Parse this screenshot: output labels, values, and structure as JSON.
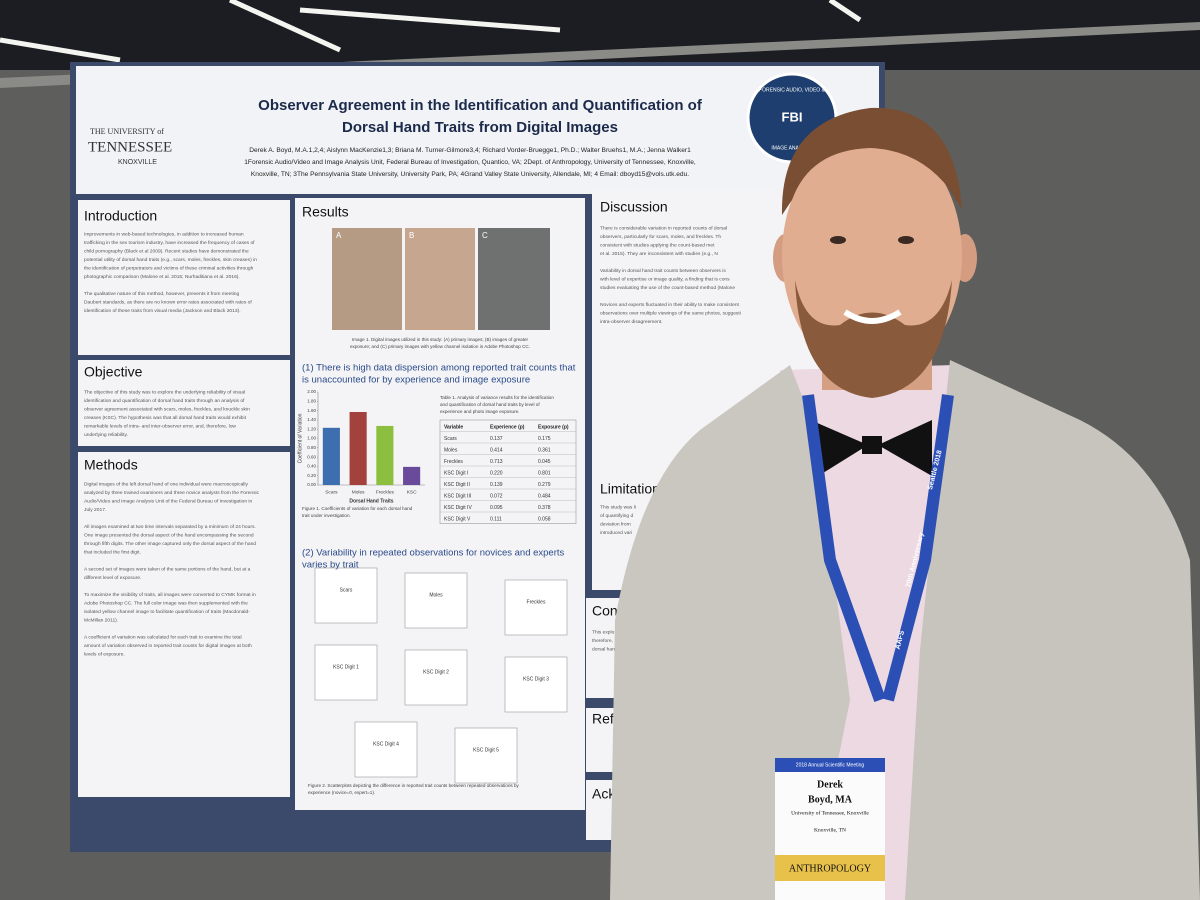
{
  "poster": {
    "title": [
      "Observer Agreement in the Identification and Quantification of",
      "Dorsal Hand Traits from Digital Images"
    ],
    "authors": [
      "Derek A. Boyd, M.A.1,2,4; Aislynn MacKenzie1,3; Briana M. Turner-Gilmore3,4; Richard Vorder-Bruegge1, Ph.D.; Walter Bruehs1, M.A.; Jenna Walker1",
      "1Forensic Audio/Video and Image Analysis Unit, Federal Bureau of Investigation, Quantico, VA; 2Dept. of Anthropology, University of Tennessee, Knoxville,",
      "Knoxville, TN; 3The Pennsylvania State University, University Park, PA; 4Grand Valley State University, Allendale, MI; 4 Email: dboyd15@vols.utk.edu."
    ],
    "logo_left": [
      "THE UNIVERSITY of",
      "TENNESSEE",
      "KNOXVILLE"
    ],
    "logo_right": [
      "FBI",
      "FORENSIC AUDIO, VIDEO &",
      "IMAGE ANALYSIS"
    ],
    "introduction": {
      "heading": "Introduction",
      "lines": [
        "Improvements in web-based technologies, in addition to increased human",
        "trafficking in the sex tourism industry, have increased the frequency of cases of",
        "child pornography (Black et al 2009). Recent studies have demonstrated the",
        "potential utility of dorsal hand traits (e.g., scars, moles, freckles, skin creases) in",
        "the identification of perpetrators and victims of these criminal activities through",
        "photographic comparison (Malone et al. 2015; Nurhaditiana et al. 2016).",
        "",
        "The qualitative nature of this method, however, prevents it from meeting",
        "Daubert standards, as there are no known error rates associated with rates of",
        "identification of these traits from visual media (Jackson and Black 2013)."
      ]
    },
    "objective": {
      "heading": "Objective",
      "lines": [
        "The objective of this study was to explore the underlying reliability of visual",
        "identification and quantification of dorsal hand traits through an analysis of",
        "observer agreement associated with scars, moles, freckles, and knuckle skin",
        "creases (KSC). The hypothesis was that all dorsal hand traits would exhibit",
        "remarkable levels of intra- and inter-observer error, and, therefore, low",
        "underlying reliability."
      ]
    },
    "methods": {
      "heading": "Methods",
      "lines": [
        "Digital images of the left dorsal hand of one individual were macroscopically",
        "analyzed by three trained examiners and three novice analysts from the Forensic",
        "Audio/Video and Image Analysis Unit of the Federal Bureau of Investigation in",
        "July 2017.",
        "",
        "All images examined at two time intervals separated by a minimum of 24 hours.",
        "One image presented the dorsal aspect of the hand encompassing the second",
        "through fifth digits. The other image captured only the dorsal aspect of the hand",
        "that included the first digit.",
        "",
        "A second set of images were taken of the same portions of the hand, but at a",
        "different level of exposure.",
        "",
        "To maximize the visibility of traits, all images were converted to CYMK format in",
        "Adobe Photoshop CC. The full color image was then supplemented with the",
        "isolated yellow channel image to facilitate quantification of traits (Macdonald-",
        "McMillan 2011).",
        "",
        "A coefficient of variation was calculated for each trait to examine the total",
        "amount of variation observed in reported trait counts for digital images at both",
        "levels of exposure."
      ]
    },
    "results": {
      "heading": "Results",
      "photo_labels": [
        "A",
        "B",
        "C"
      ],
      "image_caption": [
        "Image 1. Digital images utilized in this study: (A) primary images; (B) images of greater",
        "exposure; and (C) primary images with yellow channel isolation in Adobe Photoshop CC."
      ],
      "finding_1": [
        "(1) There is high data dispersion among reported trait counts that",
        "is unaccounted for by experience and image exposure"
      ],
      "figure_1_caption": [
        "Figure 1. Coefficients of variation for each dorsal hand",
        "trait under investigation."
      ],
      "table_caption": [
        "Table 1. Analysis of variance results for the identification",
        "and quantification of dorsal hand traits by level of",
        "experience and photo image exposure."
      ],
      "table": {
        "header": [
          "Variable",
          "Experience (p)",
          "Exposure (p)"
        ],
        "rows": [
          [
            "Scars",
            "0.137",
            "0.175"
          ],
          [
            "Moles",
            "0.414",
            "0.361"
          ],
          [
            "Freckles",
            "0.713",
            "0.045"
          ],
          [
            "KSC Digit I",
            "0.220",
            "0.801"
          ],
          [
            "KSC Digit II",
            "0.139",
            "0.279"
          ],
          [
            "KSC Digit III",
            "0.072",
            "0.484"
          ],
          [
            "KSC Digit IV",
            "0.095",
            "0.378"
          ],
          [
            "KSC Digit V",
            "0.111",
            "0.058"
          ]
        ]
      },
      "finding_2": [
        "(2) Variability in repeated observations for novices and experts",
        "varies by trait"
      ],
      "panels": [
        "Scars",
        "Moles",
        "Freckles",
        "KSC Digit 1",
        "KSC Digit 2",
        "KSC Digit 3",
        "KSC Digit 4",
        "KSC Digit 5"
      ],
      "figure_2_caption": [
        "Figure 2. Scatterplots depicting the difference in reported trait counts between repeated observations by",
        "experience (novice=0, expert=1)."
      ]
    },
    "discussion": {
      "heading": "Discussion",
      "lines": [
        "There is considerable variation in reported counts of dorsal",
        "observers, particularly for scars, moles, and freckles. Th",
        "consistent with studies applying the count-based met",
        "et al. 2015). They are inconsistent with studies (e.g., N",
        "",
        "Variability in dorsal hand trait counts between observers is",
        "with level of expertise or image quality, a finding that is cons",
        "studies evaluating the use of the count-based method (Malone",
        "",
        "Novices and experts fluctuated in their ability to make consistent",
        "observations over multiple viewings of the same photos, suggesti",
        "intra-observer disagreement."
      ]
    },
    "limitations": {
      "heading": "Limitations",
      "lines": [
        "This study was li",
        "of quantifying d",
        "deviation from",
        "introduced vari"
      ]
    },
    "conclusion": {
      "heading": "Conc",
      "lines": [
        "This explo",
        "therefore,",
        "dorsal han"
      ]
    },
    "references": {
      "heading": "Refe"
    },
    "acknowledgments": {
      "heading": "Ackn"
    }
  },
  "chart_data": {
    "type": "bar",
    "ylabel": "Coefficient of Variation",
    "xlabel": "Dorsal Hand Traits",
    "categories": [
      "Scars",
      "Moles",
      "Freckles",
      "KSC"
    ],
    "values": [
      1.23,
      1.57,
      1.27,
      0.39
    ],
    "colors": [
      "#3d6fb0",
      "#a3413c",
      "#8cbf3f",
      "#6a4a9a"
    ],
    "ylim": [
      0,
      2
    ],
    "yticks": [
      {
        "value": 0,
        "label": "0.00"
      },
      {
        "value": 0.2,
        "label": "0.20"
      },
      {
        "value": 0.4,
        "label": "0.40"
      },
      {
        "value": 0.6,
        "label": "0.60"
      },
      {
        "value": 0.8,
        "label": "0.80"
      },
      {
        "value": 1,
        "label": "1.00"
      },
      {
        "value": 1.2,
        "label": "1.20"
      },
      {
        "value": 1.4,
        "label": "1.40"
      },
      {
        "value": 1.6,
        "label": "1.60"
      },
      {
        "value": 1.8,
        "label": "1.80"
      },
      {
        "value": 2,
        "label": "2.00"
      }
    ]
  },
  "badge": {
    "meeting": "2018 Annual Scientific Meeting",
    "name": "Derek",
    "surname": "Boyd, MA",
    "affiliation": "University of Tennessee, Knoxville",
    "city": "Knoxville, TN",
    "section": "ANTHROPOLOGY"
  },
  "lanyard": [
    "AAFS",
    "70th Anniversary",
    "Seattle 2018"
  ]
}
